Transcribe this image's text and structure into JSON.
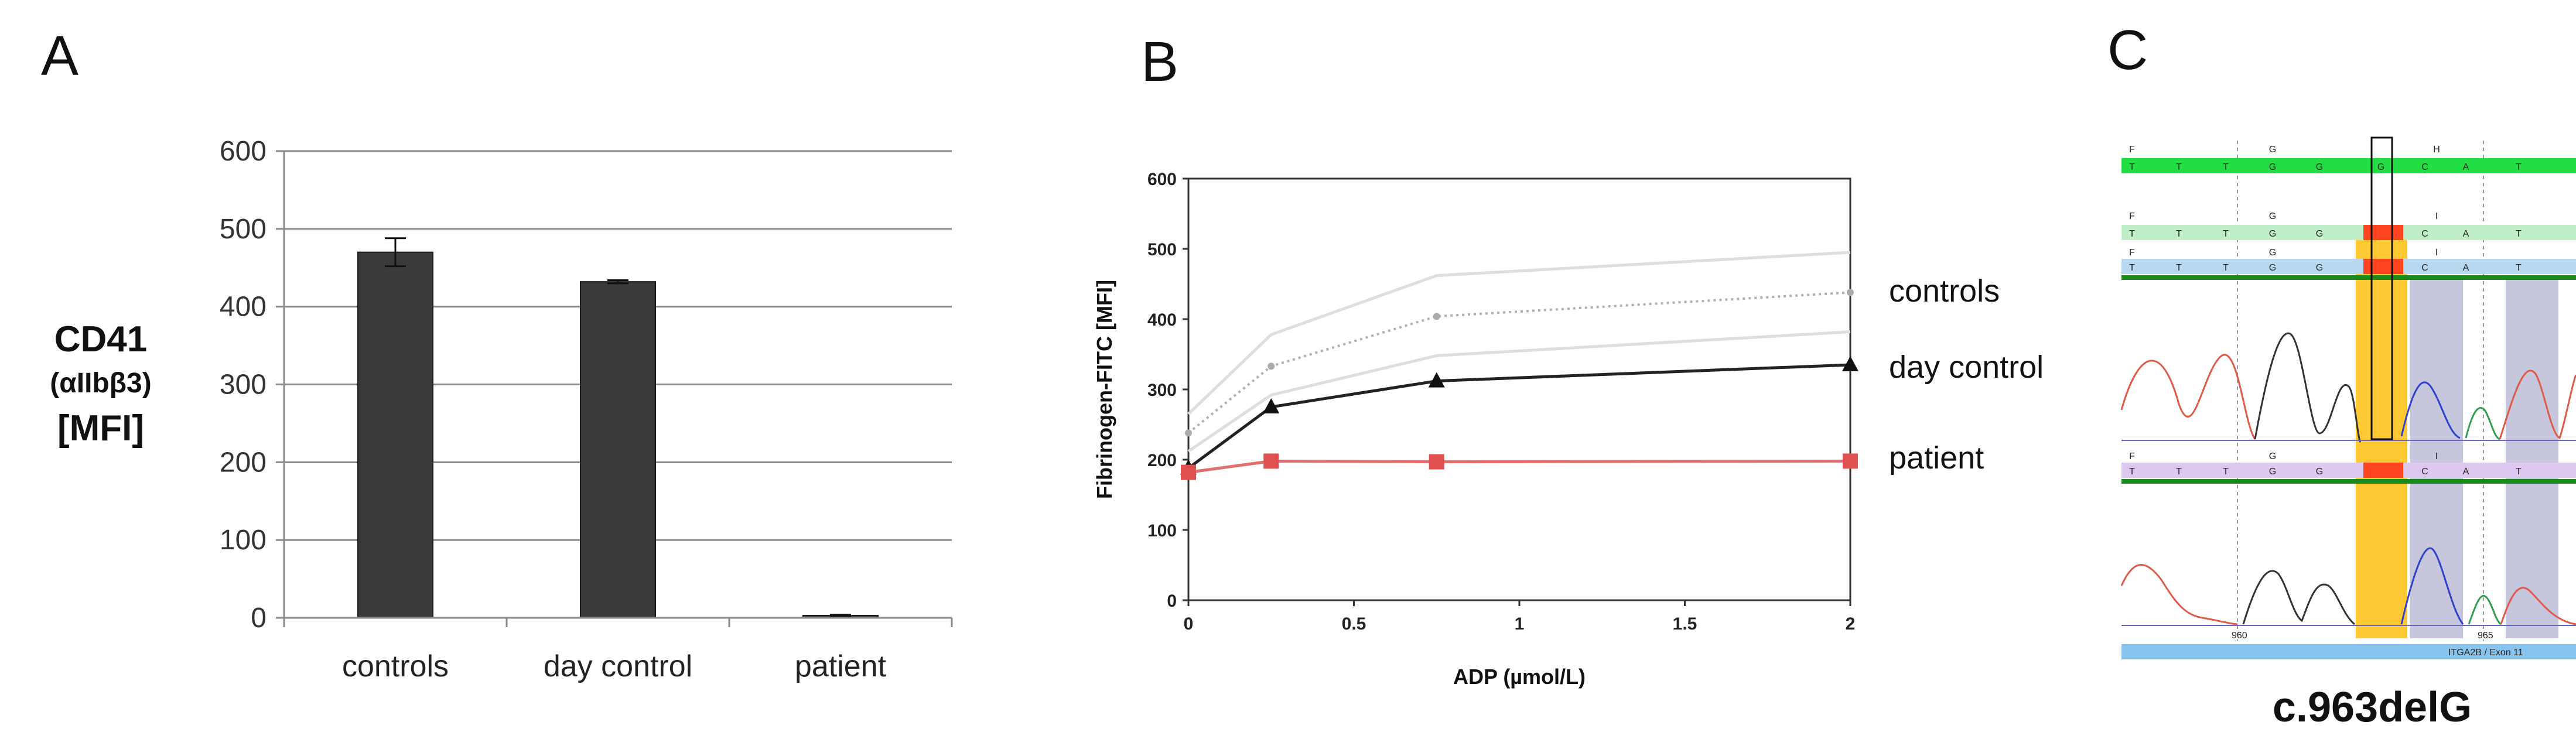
{
  "panels": {
    "a": "A",
    "b": "B",
    "c": "C"
  },
  "chart_data": [
    {
      "type": "bar",
      "panel": "A",
      "categories": [
        "controls",
        "day control",
        "patient"
      ],
      "values": [
        470,
        432,
        3
      ],
      "error": [
        18,
        2,
        1
      ],
      "ylabel_lines": [
        "CD41",
        "(αIIbβ3)",
        "[MFI]"
      ],
      "ylim": [
        0,
        600
      ],
      "yticks": [
        0,
        100,
        200,
        300,
        400,
        500,
        600
      ],
      "grid": true,
      "bar_color": "#3a3a3a"
    },
    {
      "type": "line",
      "panel": "B",
      "xlabel": "ADP (µmol/L)",
      "ylabel": "Fibrinogen-FITC [MFI]",
      "xlim": [
        0,
        2
      ],
      "ylim": [
        0,
        600
      ],
      "xticks": [
        0,
        0.5,
        1,
        1.5,
        2
      ],
      "xtick_labels": [
        "0",
        "0.5",
        "1",
        "1.5",
        "2"
      ],
      "yticks": [
        0,
        100,
        200,
        300,
        400,
        500,
        600
      ],
      "x": [
        0,
        0.25,
        0.75,
        2
      ],
      "series": [
        {
          "name": "controls upper",
          "values": [
            265,
            378,
            462,
            495
          ],
          "color": "#dedede",
          "style": "solid"
        },
        {
          "name": "controls",
          "values": [
            238,
            333,
            404,
            438
          ],
          "color": "#b0b0b0",
          "style": "dotted"
        },
        {
          "name": "controls lower",
          "values": [
            212,
            292,
            348,
            382
          ],
          "color": "#dedede",
          "style": "solid"
        },
        {
          "name": "day control",
          "values": [
            188,
            275,
            312,
            335
          ],
          "color": "#222222",
          "style": "solid",
          "marker": "triangle"
        },
        {
          "name": "patient",
          "values": [
            182,
            198,
            197,
            198
          ],
          "color": "#e07070",
          "style": "solid",
          "marker": "square",
          "marker_color": "#e05050"
        }
      ],
      "labels": [
        "controls",
        "day control",
        "patient"
      ]
    }
  ],
  "sequencing": {
    "caption": "c.963delG",
    "ref_track": {
      "header": [
        "F",
        "G",
        "H"
      ],
      "bases": [
        "T",
        "T",
        "T",
        "G",
        "G",
        "G",
        "C",
        "A",
        "T"
      ]
    },
    "track2": {
      "header": [
        "F",
        "G",
        "I"
      ],
      "bases": [
        "T",
        "T",
        "T",
        "G",
        "G",
        "C",
        "A",
        "T"
      ]
    },
    "track3": {
      "header": [
        "F",
        "G",
        "I"
      ],
      "bases": [
        "T",
        "T",
        "T",
        "G",
        "G",
        "C",
        "A",
        "T"
      ]
    },
    "track4": {
      "header": [
        "F",
        "G",
        "I"
      ],
      "bases": [
        "T",
        "T",
        "T",
        "G",
        "G",
        "C",
        "A",
        "T"
      ]
    },
    "positions": [
      "960",
      "965"
    ],
    "gene_label": "ITGA2B / Exon 11",
    "colors": {
      "green": "#22dd44",
      "light_green": "#bfeec9",
      "light_blue": "#b8d8f0",
      "light_purple": "#ddc8f0",
      "red": "#ff4422",
      "yellow": "#ffc933",
      "lavender": "#c6c6dc",
      "bar_blue": "#88c4ee"
    }
  }
}
